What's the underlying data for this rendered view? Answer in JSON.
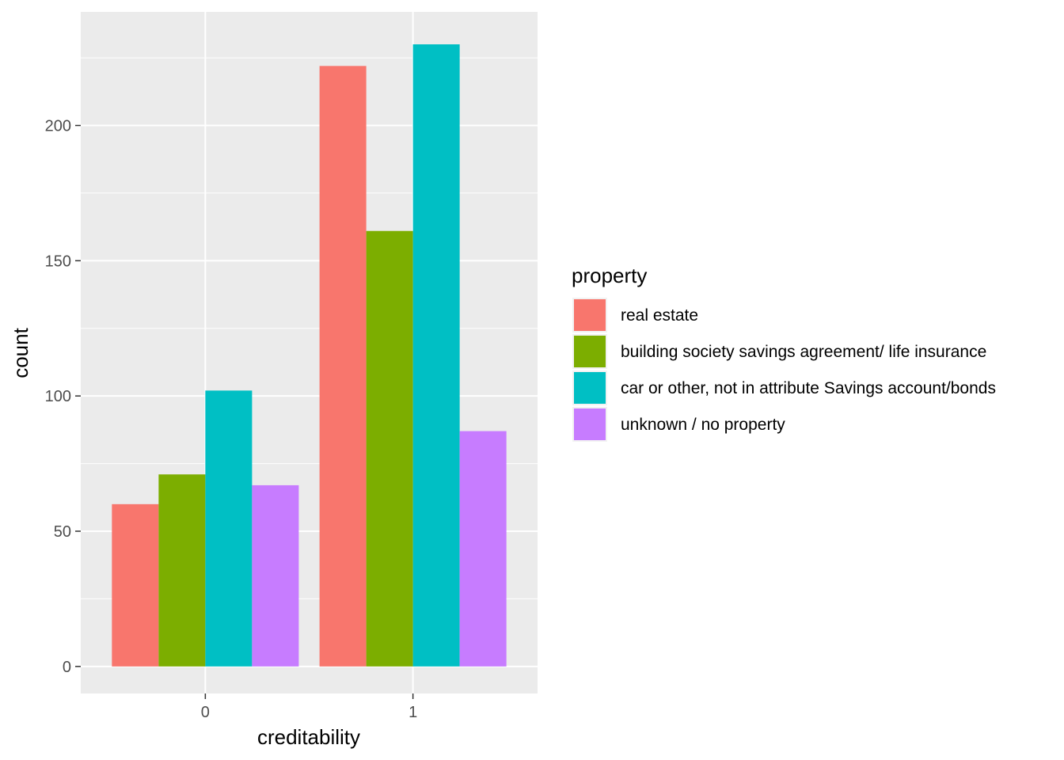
{
  "chart_data": {
    "type": "bar",
    "xlabel": "creditability",
    "ylabel": "count",
    "categories": [
      "0",
      "1"
    ],
    "ylim": [
      -10,
      242
    ],
    "yticks": [
      0,
      50,
      100,
      150,
      200
    ],
    "grid": true,
    "legend_title": "property",
    "legend_position": "right",
    "series": [
      {
        "name": "real estate",
        "color": "#F8766D",
        "values": [
          60,
          222
        ]
      },
      {
        "name": "building society savings agreement/ life insurance",
        "color": "#7CAE00",
        "values": [
          71,
          161
        ]
      },
      {
        "name": "car or other, not in attribute Savings account/bonds",
        "color": "#00BFC4",
        "values": [
          102,
          230
        ]
      },
      {
        "name": "unknown / no property",
        "color": "#C77CFF",
        "values": [
          67,
          87
        ]
      }
    ]
  }
}
